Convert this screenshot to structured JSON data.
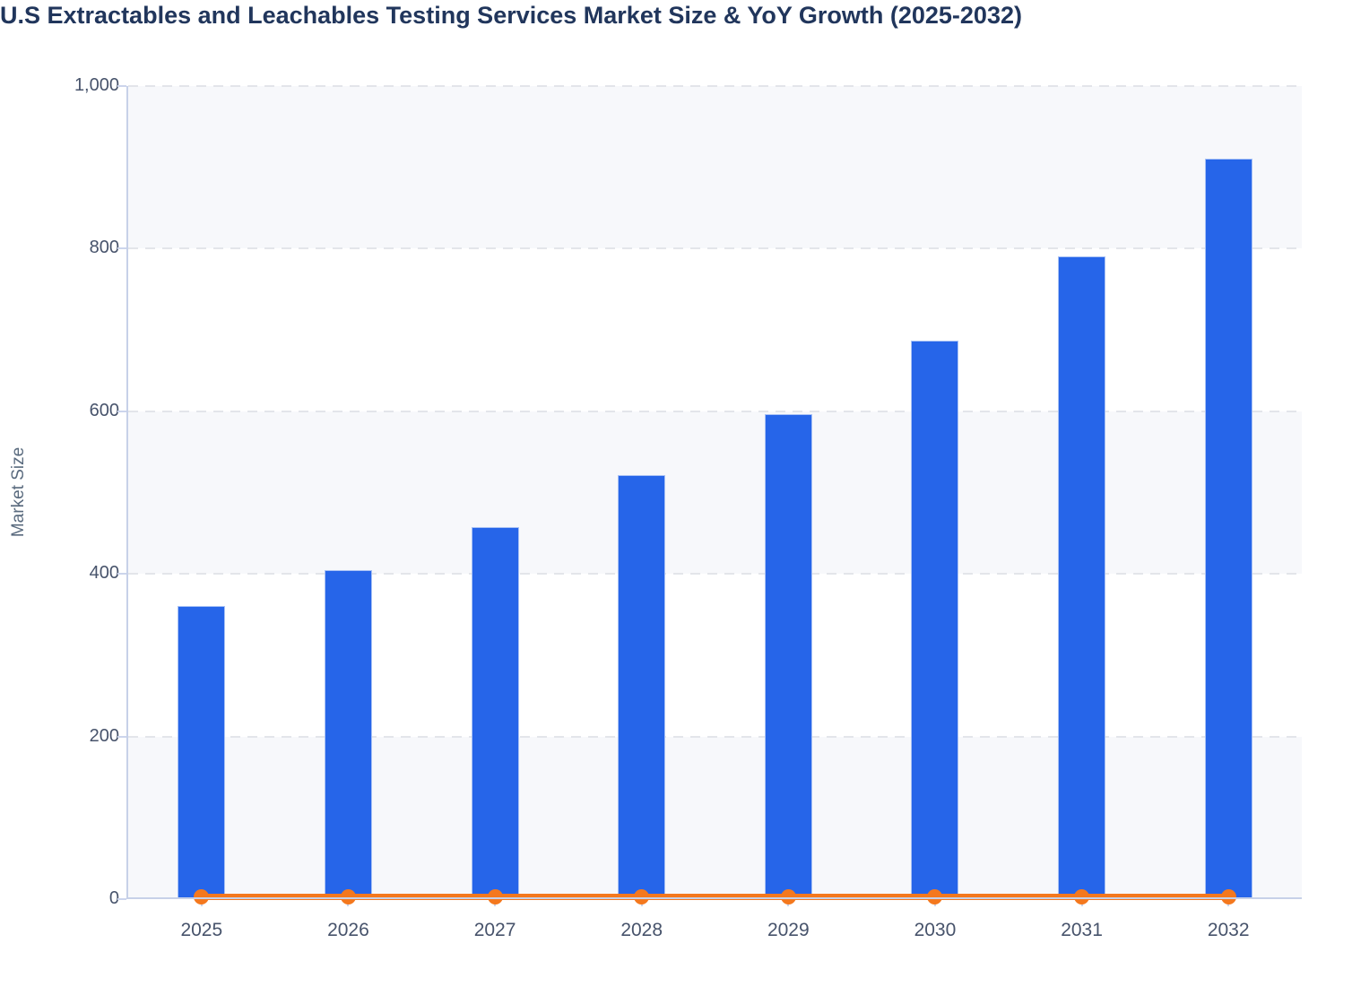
{
  "chart_data": {
    "type": "bar",
    "title": "U.S Extractables and Leachables Testing Services Market Size & YoY Growth (2025-2032)",
    "xlabel": "",
    "ylabel": "Market Size",
    "categories": [
      "2025",
      "2026",
      "2027",
      "2028",
      "2029",
      "2030",
      "2031",
      "2032"
    ],
    "series": [
      {
        "name": "Market Size",
        "type": "bar",
        "color": "#2665e9",
        "values": [
          360,
          405,
          458,
          522,
          596,
          687,
          791,
          911
        ]
      },
      {
        "name": "YoY Growth",
        "type": "line",
        "color": "#f4781e",
        "values": [
          0.12,
          0.125,
          0.131,
          0.14,
          0.142,
          0.153,
          0.151,
          0.152
        ]
      }
    ],
    "ylim": [
      0,
      1000
    ],
    "yticks": [
      0,
      200,
      400,
      600,
      800,
      1000
    ],
    "ytick_labels": [
      "0",
      "200",
      "400",
      "600",
      "800",
      "1,000"
    ],
    "grid": "horizontal-dashed",
    "legend": "none",
    "plot_bands": "alternating-200-shaded-from-top"
  },
  "colors": {
    "bar_fill": "#2665e9",
    "bar_stroke": "#a9c2f5",
    "line": "#f4781e",
    "marker": "#f4781e",
    "band": "#f7f8fb",
    "gridline": "#e3e5ea",
    "axis": "#c7d1e8",
    "title_text": "#21365c",
    "tick_text": "#47536b",
    "axis_title_text": "#596a7e"
  }
}
